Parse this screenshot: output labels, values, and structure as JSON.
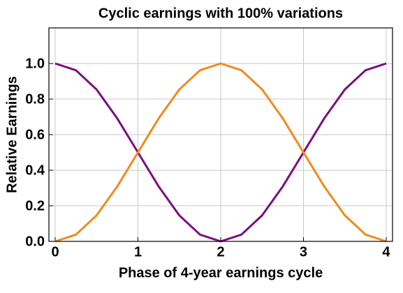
{
  "chart_data": {
    "type": "line",
    "title": "Cyclic earnings with 100% variations",
    "x_label": "Phase of 4-year earnings cycle",
    "y_label": "Relative Earnings",
    "x": [
      0,
      0.25,
      0.5,
      0.75,
      1,
      1.25,
      1.5,
      1.75,
      2,
      2.25,
      2.5,
      2.75,
      3,
      3.25,
      3.5,
      3.75,
      4
    ],
    "series": [
      {
        "color": "#7b0e80",
        "values": [
          1,
          0.962,
          0.854,
          0.691,
          0.5,
          0.309,
          0.146,
          0.038,
          0,
          0.038,
          0.146,
          0.309,
          0.5,
          0.691,
          0.854,
          0.962,
          1
        ]
      },
      {
        "color": "#f28a1c",
        "values": [
          0,
          0.038,
          0.146,
          0.309,
          0.5,
          0.691,
          0.854,
          0.962,
          1,
          0.962,
          0.854,
          0.691,
          0.5,
          0.309,
          0.146,
          0.038,
          0
        ]
      }
    ],
    "xlim": [
      -0.076,
      4.076
    ],
    "ylim": [
      0,
      1.2
    ],
    "xticks": [
      0,
      1,
      2,
      3,
      4
    ],
    "yticks": [
      {
        "value": 0,
        "label": "0.0"
      },
      0.2,
      0.4,
      0.6,
      0.8,
      {
        "value": 1,
        "label": "1.0"
      }
    ],
    "grid": true
  }
}
